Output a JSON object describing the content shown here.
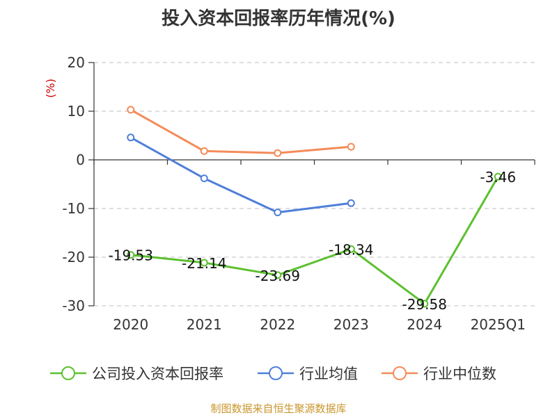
{
  "title": "投入资本回报率历年情况(%)",
  "source": "制图数据来自恒生聚源数据库",
  "colors": {
    "company": "#5cc02f",
    "industry_avg": "#4f7fd9",
    "industry_median": "#f48b58",
    "source": "#c9962c",
    "unit": "#cc0000",
    "axis": "#333333",
    "grid": "#cccccc"
  },
  "chart_data": {
    "type": "line",
    "title": "投入资本回报率历年情况(%)",
    "ylabel": "(%)",
    "ylim": [
      -30,
      20
    ],
    "yticks": [
      20,
      10,
      0,
      -10,
      -20,
      -30
    ],
    "grid": true,
    "legend_position": "bottom",
    "categories": [
      "2020",
      "2021",
      "2022",
      "2023",
      "2024",
      "2025Q1"
    ],
    "series": [
      {
        "key": "company",
        "name": "公司投入资本回报率",
        "values": [
          -19.53,
          -21.14,
          -23.69,
          -18.34,
          -29.58,
          -3.46
        ],
        "labels": [
          "-19.53",
          "-21.14",
          "-23.69",
          "-18.34",
          "-29.58",
          "-3.46"
        ]
      },
      {
        "key": "industry_avg",
        "name": "行业均值",
        "values": [
          4.6,
          -3.8,
          -10.8,
          -8.9,
          null,
          null
        ]
      },
      {
        "key": "industry_median",
        "name": "行业中位数",
        "values": [
          10.3,
          1.8,
          1.4,
          2.7,
          null,
          null
        ]
      }
    ]
  }
}
